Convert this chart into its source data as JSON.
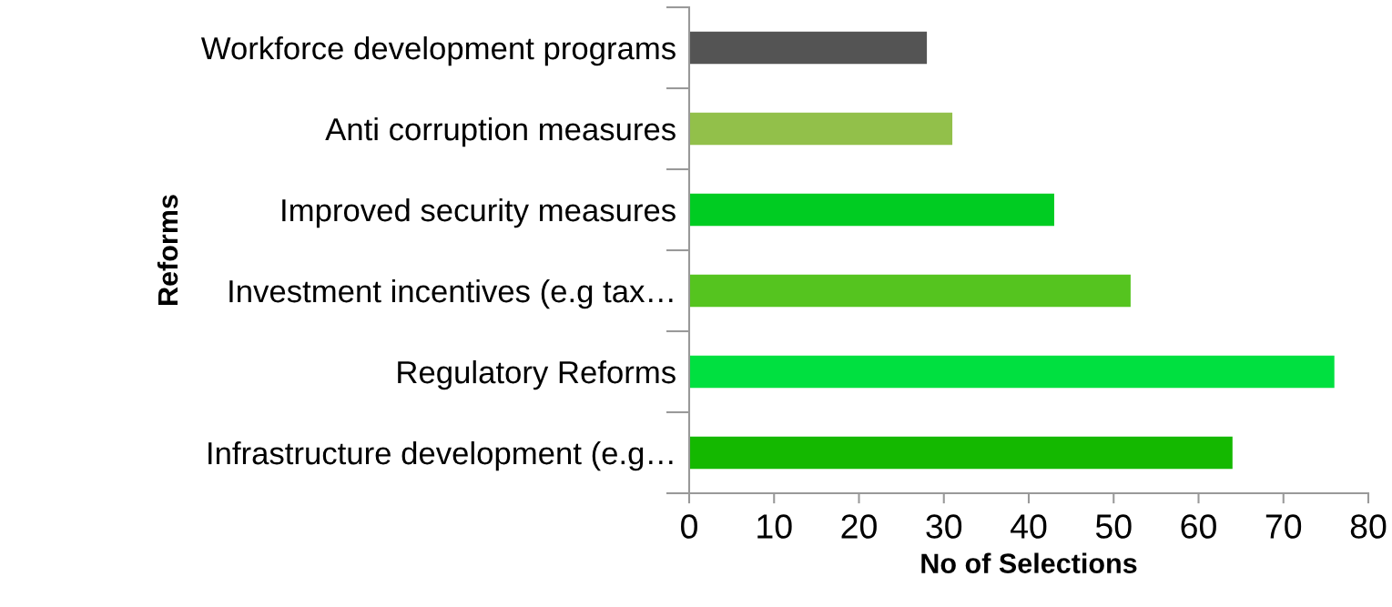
{
  "chart_data": {
    "type": "bar",
    "orientation": "horizontal",
    "xlabel": "No of Selections",
    "ylabel": "Reforms",
    "categories": [
      "Workforce development programs",
      "Anti corruption measures",
      "Improved security measures",
      "Investment incentives (e.g tax…",
      "Regulatory Reforms",
      "Infrastructure development (e.g…"
    ],
    "values": [
      28,
      31,
      43,
      52,
      76,
      64
    ],
    "colors": [
      "#545454",
      "#92c04a",
      "#00cc22",
      "#55c41f",
      "#00e040",
      "#14b800"
    ],
    "xlim": [
      0,
      80
    ],
    "xticks": [
      0,
      10,
      20,
      30,
      40,
      50,
      60,
      70,
      80
    ],
    "grid": false,
    "legend": false
  }
}
